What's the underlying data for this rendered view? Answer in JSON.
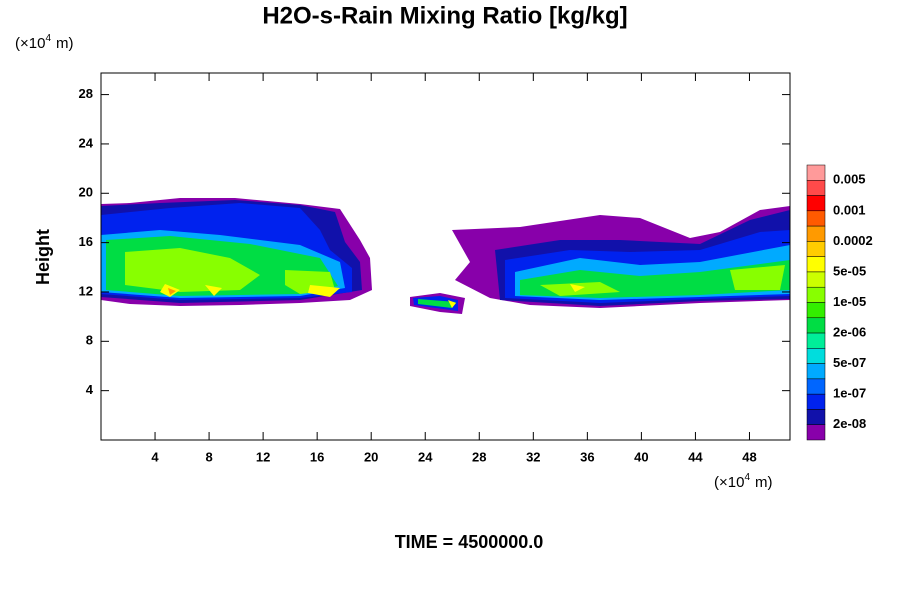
{
  "chart_data": {
    "type": "contour",
    "title": "H2O-s-Rain Mixing Ratio [kg/kg]",
    "y_label": "Height",
    "x_unit": {
      "prefix": "(×10",
      "exponent": "4",
      "suffix": "m)"
    },
    "y_unit": {
      "prefix": "(×10",
      "exponent": "4",
      "suffix": "m)"
    },
    "footer": "TIME = 4500000.0",
    "xlim": [
      0,
      51
    ],
    "ylim": [
      0,
      29.75
    ],
    "xticks": [
      4,
      8,
      12,
      16,
      20,
      24,
      28,
      32,
      36,
      40,
      44,
      48
    ],
    "yticks": [
      4,
      8,
      12,
      16,
      20,
      24,
      28
    ],
    "colorbar": {
      "colors": [
        "#ff9a9a",
        "#ff4a4a",
        "#ff0000",
        "#ff5a00",
        "#ff9a00",
        "#ffcc00",
        "#ffff00",
        "#ccff00",
        "#88ff00",
        "#33ee00",
        "#00dd44",
        "#00ee99",
        "#00dddd",
        "#00aaff",
        "#0066ff",
        "#0022ee",
        "#1111aa",
        "#8800aa"
      ],
      "levels": [
        0.005,
        0.001,
        0.0002,
        {
          "value": 5e-05,
          "label": "5e-05"
        },
        {
          "value": 1e-05,
          "label": "1e-05"
        },
        {
          "value": 2e-06,
          "label": "2e-06"
        },
        {
          "value": 5e-07,
          "label": "5e-07"
        },
        {
          "value": 1e-07,
          "label": "1e-07"
        },
        {
          "value": 2e-08,
          "label": "2e-08"
        }
      ]
    }
  }
}
